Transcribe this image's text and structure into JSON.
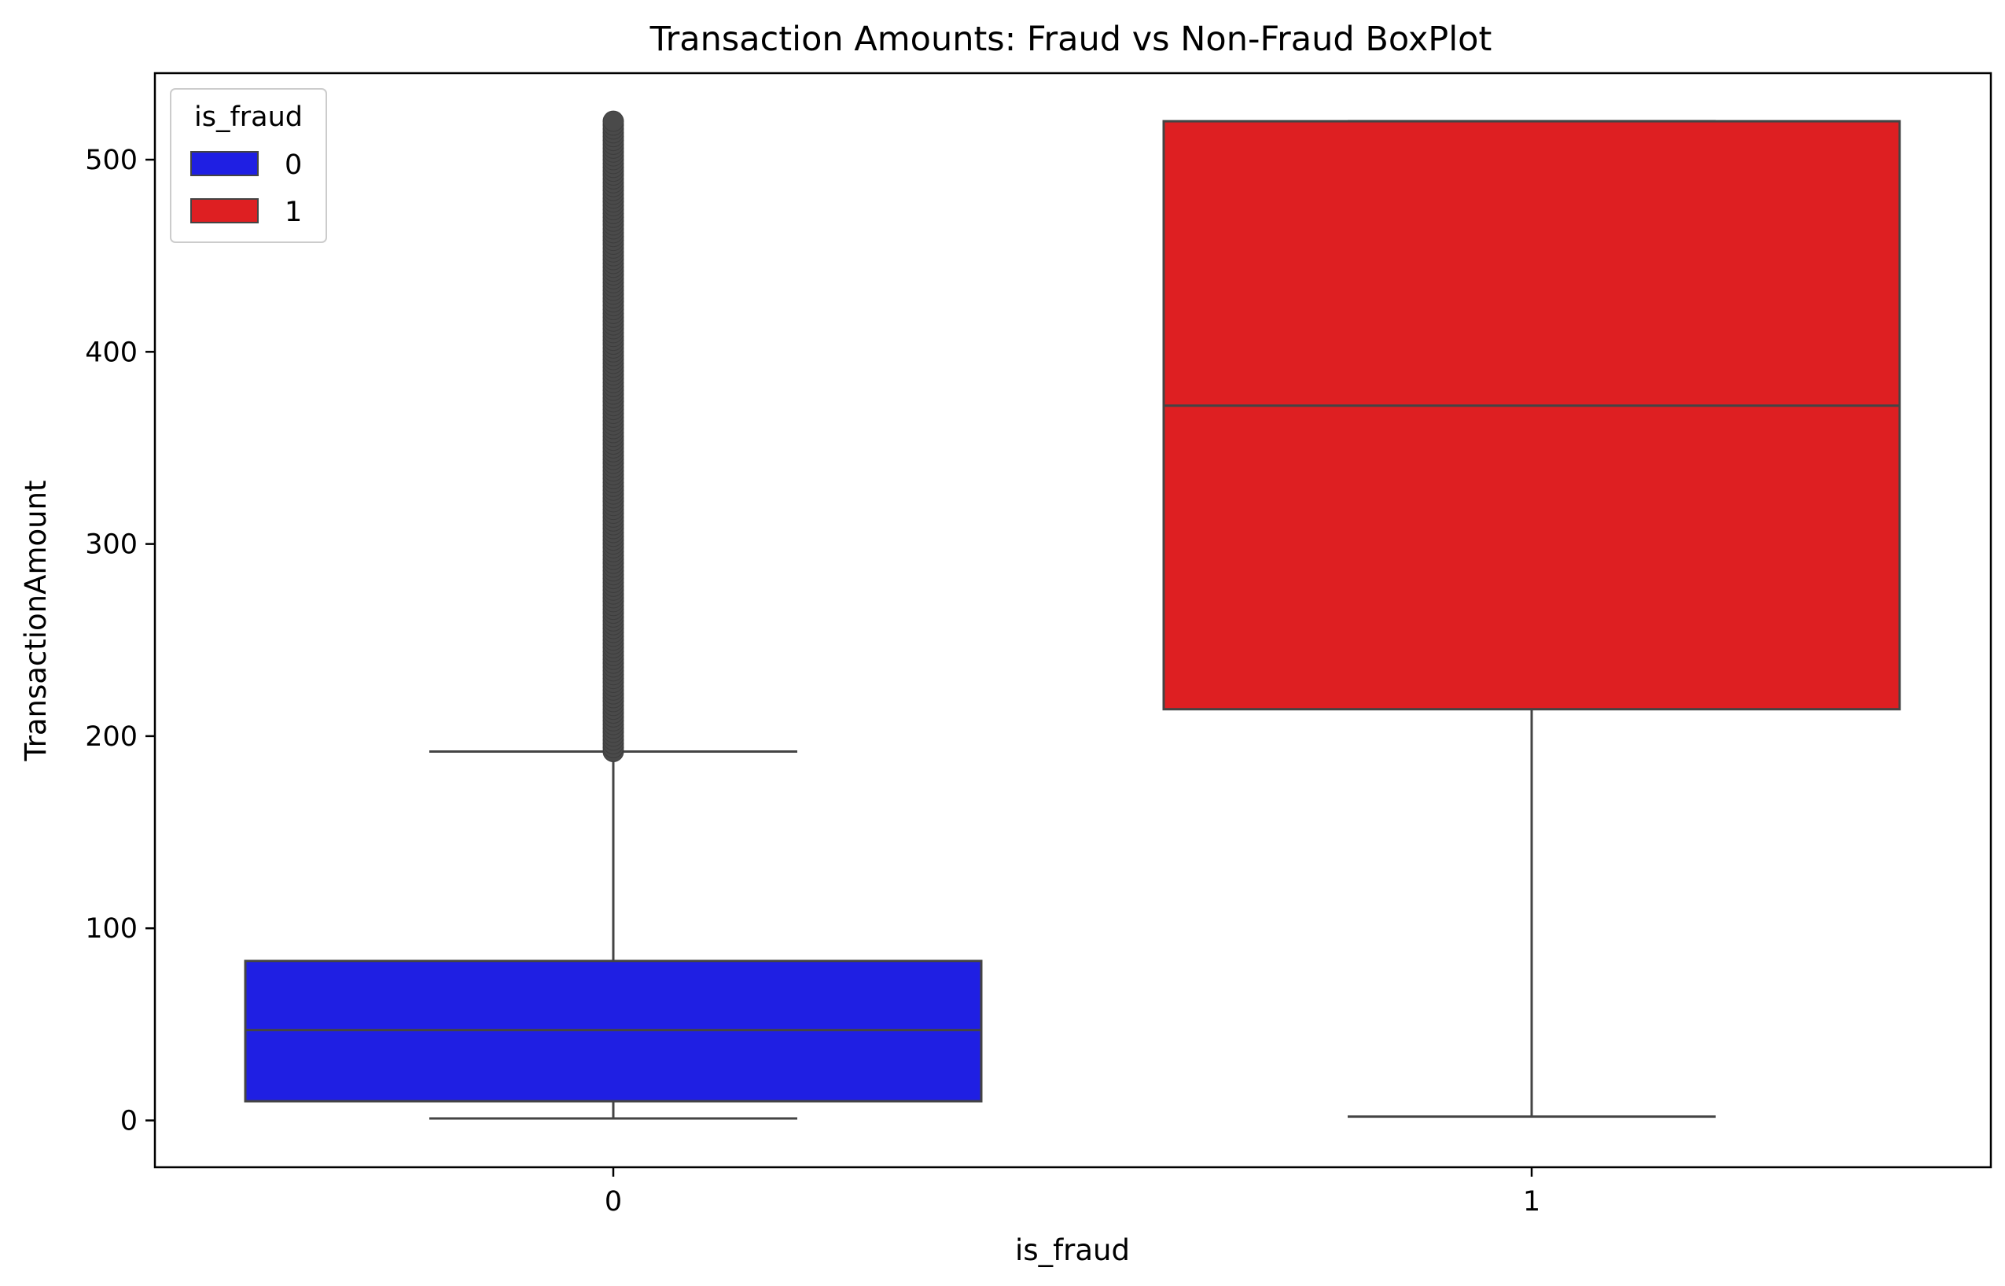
{
  "chart_data": {
    "type": "box",
    "title": "Transaction Amounts: Fraud vs Non-Fraud BoxPlot",
    "xlabel": "is_fraud",
    "ylabel": "TransactionAmount",
    "categories": [
      "0",
      "1"
    ],
    "ylim": [
      -25,
      545
    ],
    "yticks": [
      0,
      100,
      200,
      300,
      400,
      500
    ],
    "grid": false,
    "legend": {
      "title": "is_fraud",
      "placement": "top-left",
      "entries": [
        {
          "label": "0",
          "color": "#1f1fe3"
        },
        {
          "label": "1",
          "color": "#de1f22"
        }
      ]
    },
    "series": [
      {
        "category": "0",
        "color": "#1f1fe3",
        "whisker_low": 1,
        "q1": 10,
        "median": 47,
        "q3": 83,
        "whisker_high": 192,
        "outliers_range": [
          192,
          520
        ]
      },
      {
        "category": "1",
        "color": "#de1f22",
        "whisker_low": 2,
        "q1": 214,
        "median": 372,
        "q3": 520,
        "whisker_high": 520,
        "outliers_range": null
      }
    ]
  }
}
